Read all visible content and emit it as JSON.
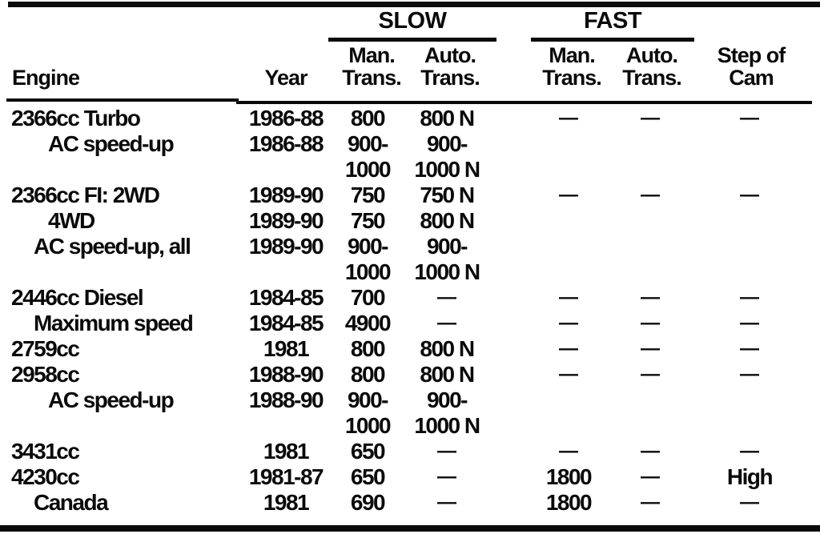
{
  "header": {
    "engine": "Engine",
    "year": "Year",
    "slow": {
      "label": "SLOW",
      "man": [
        "Man.",
        "Trans."
      ],
      "auto": [
        "Auto.",
        "Trans."
      ]
    },
    "fast": {
      "label": "FAST",
      "man": [
        "Man.",
        "Trans."
      ],
      "auto": [
        "Auto.",
        "Trans."
      ]
    },
    "cam": [
      "Step of",
      "Cam"
    ]
  },
  "rows": [
    {
      "engine": "2366cc Turbo",
      "indent": 0,
      "year": "1986-88",
      "slow_man": "800",
      "slow_auto": "800 N",
      "fast_man": "—",
      "fast_auto": "—",
      "cam": "—"
    },
    {
      "engine": "AC speed-up",
      "indent": 2,
      "year": "1986-88",
      "slow_man": "900-",
      "slow_auto": "900-",
      "fast_man": "",
      "fast_auto": "",
      "cam": ""
    },
    {
      "engine": "",
      "indent": 0,
      "year": "",
      "slow_man": "1000",
      "slow_auto": "1000 N",
      "fast_man": "",
      "fast_auto": "",
      "cam": ""
    },
    {
      "engine": "2366cc FI: 2WD",
      "indent": 0,
      "year": "1989-90",
      "slow_man": "750",
      "slow_auto": "750 N",
      "fast_man": "—",
      "fast_auto": "—",
      "cam": "—"
    },
    {
      "engine": "4WD",
      "indent": 2,
      "year": "1989-90",
      "slow_man": "750",
      "slow_auto": "800 N",
      "fast_man": "",
      "fast_auto": "",
      "cam": ""
    },
    {
      "engine": "AC speed-up, all",
      "indent": 1,
      "year": "1989-90",
      "slow_man": "900-",
      "slow_auto": "900-",
      "fast_man": "",
      "fast_auto": "",
      "cam": ""
    },
    {
      "engine": "",
      "indent": 0,
      "year": "",
      "slow_man": "1000",
      "slow_auto": "1000 N",
      "fast_man": "",
      "fast_auto": "",
      "cam": ""
    },
    {
      "engine": "2446cc Diesel",
      "indent": 0,
      "year": "1984-85",
      "slow_man": "700",
      "slow_auto": "—",
      "fast_man": "—",
      "fast_auto": "—",
      "cam": "—"
    },
    {
      "engine": "Maximum speed",
      "indent": 1,
      "year": "1984-85",
      "slow_man": "4900",
      "slow_auto": "—",
      "fast_man": "—",
      "fast_auto": "—",
      "cam": "—"
    },
    {
      "engine": "2759cc",
      "indent": 0,
      "year": "1981",
      "slow_man": "800",
      "slow_auto": "800 N",
      "fast_man": "—",
      "fast_auto": "—",
      "cam": "—"
    },
    {
      "engine": "2958cc",
      "indent": 0,
      "year": "1988-90",
      "slow_man": "800",
      "slow_auto": "800 N",
      "fast_man": "—",
      "fast_auto": "—",
      "cam": "—"
    },
    {
      "engine": "AC speed-up",
      "indent": 2,
      "year": "1988-90",
      "slow_man": "900-",
      "slow_auto": "900-",
      "fast_man": "",
      "fast_auto": "",
      "cam": ""
    },
    {
      "engine": "",
      "indent": 0,
      "year": "",
      "slow_man": "1000",
      "slow_auto": "1000 N",
      "fast_man": "",
      "fast_auto": "",
      "cam": ""
    },
    {
      "engine": "3431cc",
      "indent": 0,
      "year": "1981",
      "slow_man": "650",
      "slow_auto": "—",
      "fast_man": "—",
      "fast_auto": "—",
      "cam": "—"
    },
    {
      "engine": "4230cc",
      "indent": 0,
      "year": "1981-87",
      "slow_man": "650",
      "slow_auto": "—",
      "fast_man": "1800",
      "fast_auto": "—",
      "cam": "High"
    },
    {
      "engine": "Canada",
      "indent": 1,
      "year": "1981",
      "slow_man": "690",
      "slow_auto": "—",
      "fast_man": "1800",
      "fast_auto": "—",
      "cam": "—"
    }
  ]
}
